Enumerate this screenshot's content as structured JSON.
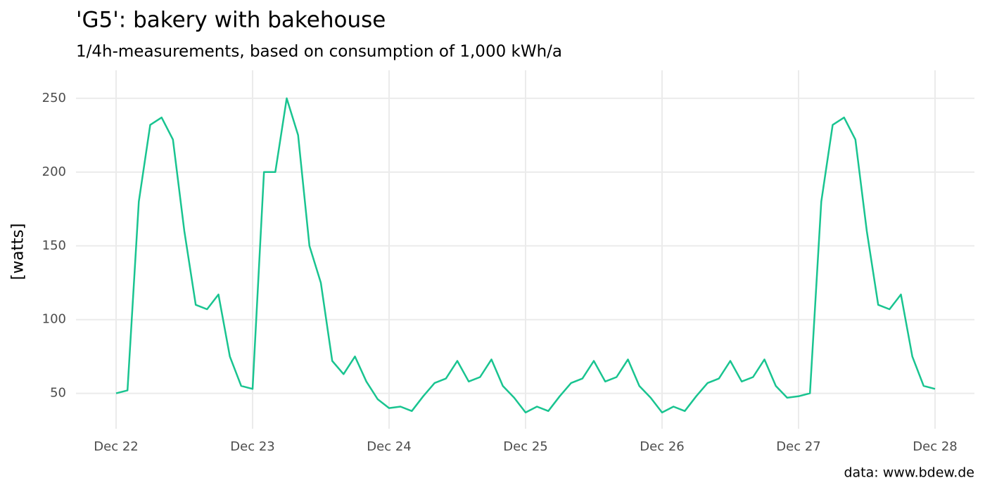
{
  "chart_data": {
    "type": "line",
    "title": "'G5': bakery with bakehouse",
    "subtitle": "1/4h-measurements, based on consumption of 1,000 kWh/a",
    "y_label": "[watts]",
    "caption": "data: www.bdew.de",
    "categories": [
      "Dec 22",
      null,
      null,
      null,
      null,
      null,
      null,
      null,
      null,
      null,
      null,
      null,
      "Dec 23",
      null,
      null,
      null,
      null,
      null,
      null,
      null,
      null,
      null,
      null,
      null,
      "Dec 24",
      null,
      null,
      null,
      null,
      null,
      null,
      null,
      null,
      null,
      null,
      null,
      "Dec 25",
      null,
      null,
      null,
      null,
      null,
      null,
      null,
      null,
      null,
      null,
      null,
      "Dec 26",
      null,
      null,
      null,
      null,
      null,
      null,
      null,
      null,
      null,
      null,
      null,
      "Dec 27",
      null,
      null,
      null,
      null,
      null,
      null,
      null,
      null,
      null,
      null,
      null,
      "Dec 28"
    ],
    "series": [
      {
        "color": "#19c490",
        "values": [
          50,
          52,
          180,
          232,
          237,
          222,
          160,
          110,
          107,
          117,
          75,
          55,
          53,
          200,
          200,
          250,
          225,
          150,
          125,
          72,
          63,
          75,
          58,
          46,
          40,
          41,
          38,
          48,
          57,
          60,
          72,
          58,
          61,
          73,
          55,
          47,
          37,
          41,
          38,
          48,
          57,
          60,
          72,
          58,
          61,
          73,
          55,
          47,
          37,
          41,
          38,
          48,
          57,
          60,
          72,
          58,
          61,
          73,
          55,
          47,
          48,
          50,
          180,
          232,
          237,
          222,
          160,
          110,
          107,
          117,
          75,
          55,
          53
        ]
      }
    ],
    "ylim": [
      26,
      269
    ],
    "yticks": [
      50,
      100,
      150,
      200,
      250
    ],
    "grid": true
  }
}
